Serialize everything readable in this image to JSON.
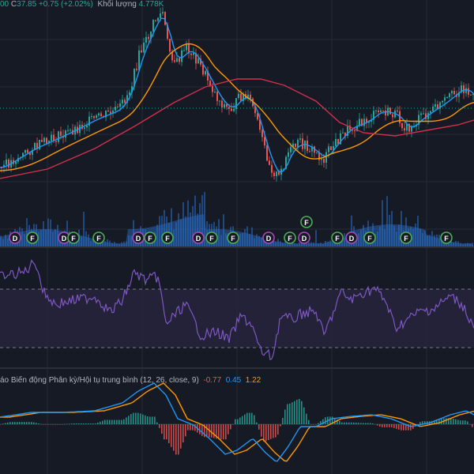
{
  "colors": {
    "background": "#161a25",
    "grid": "#242a37",
    "candle_up": "#26a69a",
    "candle_down": "#ef5350",
    "ma_fast": "#2196f3",
    "ma_mid": "#ff9800",
    "ma_slow": "#d32f4a",
    "volume": "#2a6fc9",
    "rsi_line": "#7e57c2",
    "rsi_band": "#2a2540",
    "macd_line": "#2196f3",
    "signal_line": "#ff9800",
    "hist_up": "#26a69a",
    "hist_down": "#ef5350",
    "marker_f": "#4caf50",
    "marker_d": "#ab47bc"
  },
  "legend": {
    "open_fragment": "00",
    "close_label": "C",
    "close_value": "37.85",
    "change": "+0.75 (+2.02%)",
    "volume_label": "Khối lượng",
    "volume_value": "4.778K"
  },
  "macd": {
    "title": "áo Biến động Phân kỳ/Hội tụ trung bình (12, 26, close, 9)",
    "histogram_value": "-0.77",
    "macd_value": "0.45",
    "signal_value": "1.22"
  },
  "markers": [
    {
      "type": "D"
    },
    {
      "type": "F"
    },
    {
      "type": "D"
    },
    {
      "type": "F"
    },
    {
      "type": "F"
    },
    {
      "type": "D"
    },
    {
      "type": "F"
    },
    {
      "type": "F"
    },
    {
      "type": "D"
    },
    {
      "type": "F"
    },
    {
      "type": "F"
    },
    {
      "type": "D"
    },
    {
      "type": "F"
    },
    {
      "type": "D"
    },
    {
      "type": "F"
    },
    {
      "type": "D"
    },
    {
      "type": "F"
    },
    {
      "type": "F"
    },
    {
      "type": "F"
    }
  ],
  "rsi": {
    "upper_band": 70,
    "lower_band": 30
  }
}
